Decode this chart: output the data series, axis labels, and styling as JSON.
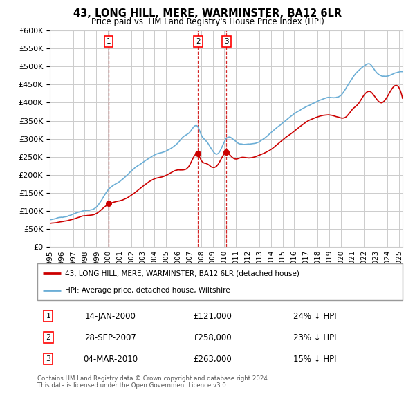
{
  "title": "43, LONG HILL, MERE, WARMINSTER, BA12 6LR",
  "subtitle": "Price paid vs. HM Land Registry's House Price Index (HPI)",
  "hpi_color": "#6baed6",
  "price_color": "#cc0000",
  "marker_color": "#cc0000",
  "background_color": "#ffffff",
  "grid_color": "#cccccc",
  "ylim": [
    0,
    600000
  ],
  "yticks": [
    0,
    50000,
    100000,
    150000,
    200000,
    250000,
    300000,
    350000,
    400000,
    450000,
    500000,
    550000,
    600000
  ],
  "sales": [
    {
      "num": 1,
      "date_str": "14-JAN-2000",
      "date_x": 2000.04,
      "price": 121000,
      "hpi_pct": "24%",
      "vline_x": 2000.04
    },
    {
      "num": 2,
      "date_str": "28-SEP-2007",
      "date_x": 2007.74,
      "price": 258000,
      "hpi_pct": "23%",
      "vline_x": 2007.74
    },
    {
      "num": 3,
      "date_str": "04-MAR-2010",
      "date_x": 2010.17,
      "price": 263000,
      "hpi_pct": "15%",
      "vline_x": 2010.17
    }
  ],
  "legend_label_red": "43, LONG HILL, MERE, WARMINSTER, BA12 6LR (detached house)",
  "legend_label_blue": "HPI: Average price, detached house, Wiltshire",
  "footnote": "Contains HM Land Registry data © Crown copyright and database right 2024.\nThis data is licensed under the Open Government Licence v3.0.",
  "xmin": 1995.0,
  "xmax": 2025.3,
  "hpi_anchors_x": [
    1995.0,
    1996.0,
    1997.0,
    1998.0,
    1999.0,
    2000.04,
    2001.0,
    2002.0,
    2003.0,
    2004.0,
    2005.0,
    2006.0,
    2006.5,
    2007.0,
    2007.74,
    2008.0,
    2008.5,
    2009.0,
    2009.5,
    2010.17,
    2011.0,
    2012.0,
    2013.0,
    2014.0,
    2015.0,
    2016.0,
    2017.0,
    2018.0,
    2019.0,
    2020.0,
    2021.0,
    2022.0,
    2022.5,
    2023.0,
    2024.0,
    2025.3
  ],
  "hpi_anchors_y": [
    75000,
    82000,
    90000,
    100000,
    110000,
    158000,
    180000,
    210000,
    235000,
    255000,
    268000,
    290000,
    308000,
    320000,
    335000,
    315000,
    295000,
    270000,
    265000,
    305000,
    295000,
    288000,
    295000,
    320000,
    345000,
    370000,
    390000,
    405000,
    415000,
    420000,
    470000,
    505000,
    510000,
    490000,
    478000,
    490000
  ],
  "price_anchors_x": [
    1995.0,
    1996.0,
    1997.0,
    1998.0,
    1999.0,
    2000.04,
    2001.0,
    2002.0,
    2003.0,
    2004.0,
    2005.0,
    2006.0,
    2007.0,
    2007.74,
    2008.0,
    2008.5,
    2009.0,
    2009.5,
    2010.17,
    2010.5,
    2011.0,
    2011.5,
    2012.0,
    2013.0,
    2014.0,
    2015.0,
    2016.0,
    2017.0,
    2018.0,
    2019.0,
    2020.0,
    2020.5,
    2021.0,
    2021.5,
    2022.0,
    2022.5,
    2023.0,
    2023.5,
    2024.0,
    2025.3
  ],
  "price_anchors_y": [
    65000,
    70000,
    78000,
    88000,
    95000,
    121000,
    130000,
    145000,
    170000,
    190000,
    200000,
    215000,
    228000,
    258000,
    242000,
    232000,
    222000,
    232000,
    263000,
    255000,
    245000,
    250000,
    248000,
    255000,
    270000,
    295000,
    320000,
    345000,
    360000,
    365000,
    358000,
    362000,
    382000,
    397000,
    422000,
    432000,
    415000,
    402000,
    420000,
    415000
  ],
  "table_rows": [
    {
      "num": 1,
      "date": "14-JAN-2000",
      "price": "£121,000",
      "pct": "24% ↓ HPI"
    },
    {
      "num": 2,
      "date": "28-SEP-2007",
      "price": "£258,000",
      "pct": "23% ↓ HPI"
    },
    {
      "num": 3,
      "date": "04-MAR-2010",
      "price": "£263,000",
      "pct": "15% ↓ HPI"
    }
  ]
}
